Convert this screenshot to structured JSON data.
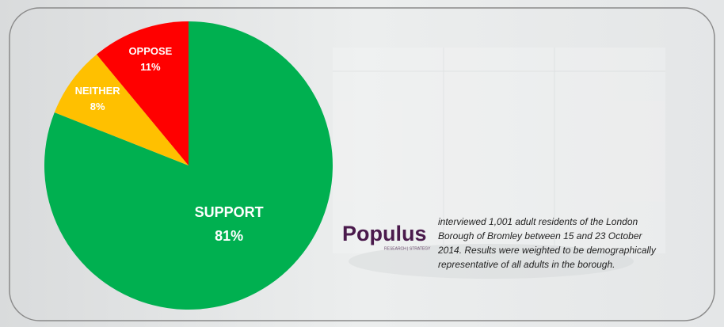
{
  "chart_data": {
    "type": "pie",
    "categories": [
      "SUPPORT",
      "NEITHER",
      "OPPOSE"
    ],
    "values": [
      81,
      8,
      11
    ],
    "value_labels": [
      "81%",
      "8%",
      "11%"
    ],
    "colors": [
      "#00b050",
      "#ffc000",
      "#ff0000"
    ],
    "start_angle": "top",
    "direction": "clockwise",
    "annotation": [
      "interviewed 1,001 adult residents of the London",
      "Borough of Bromley between 15 and 23 October",
      "2014.  Results were weighted to be demographically",
      "representative of all adults in the borough."
    ],
    "logo": {
      "name": "Populus",
      "tagline": "RESEARCH | STRATEGY"
    }
  }
}
